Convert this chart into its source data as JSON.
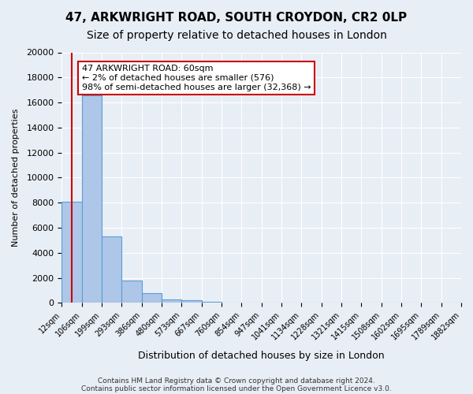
{
  "title1": "47, ARKWRIGHT ROAD, SOUTH CROYDON, CR2 0LP",
  "title2": "Size of property relative to detached houses in London",
  "xlabel": "Distribution of detached houses by size in London",
  "ylabel": "Number of detached properties",
  "bar_heights": [
    8100,
    16600,
    5300,
    1800,
    800,
    300,
    200,
    100,
    0,
    0,
    0,
    0,
    0,
    0,
    0,
    0,
    0,
    0,
    0,
    0
  ],
  "bar_labels": [
    "12sqm",
    "106sqm",
    "199sqm",
    "293sqm",
    "386sqm",
    "480sqm",
    "573sqm",
    "667sqm",
    "760sqm",
    "854sqm",
    "947sqm",
    "1041sqm",
    "1134sqm",
    "1228sqm",
    "1321sqm",
    "1415sqm",
    "1508sqm",
    "1602sqm",
    "1695sqm",
    "1789sqm",
    "1882sqm"
  ],
  "bar_color": "#aec6e8",
  "bar_edge_color": "#5a9fd4",
  "ylim": [
    0,
    20000
  ],
  "yticks": [
    0,
    2000,
    4000,
    6000,
    8000,
    10000,
    12000,
    14000,
    16000,
    18000,
    20000
  ],
  "vline_x": 0.5,
  "vline_color": "#cc0000",
  "annotation_box_text": "47 ARKWRIGHT ROAD: 60sqm\n← 2% of detached houses are smaller (576)\n98% of semi-detached houses are larger (32,368) →",
  "annotation_box_color": "#ffffff",
  "annotation_box_edge_color": "#cc0000",
  "footer1": "Contains HM Land Registry data © Crown copyright and database right 2024.",
  "footer2": "Contains public sector information licensed under the Open Government Licence v3.0.",
  "background_color": "#e8eef5",
  "plot_background": "#e8eef5",
  "title1_fontsize": 11,
  "title2_fontsize": 10,
  "n_bars": 20
}
